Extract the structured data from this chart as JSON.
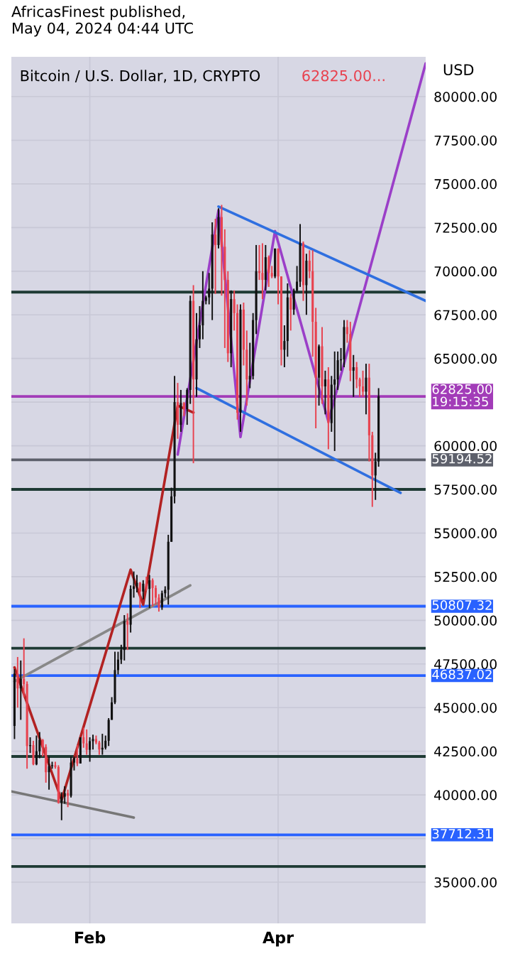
{
  "chart_data": {
    "type": "candlestick",
    "title": "Bitcoin / U.S. Dollar, 1D, CRYPTO",
    "subtitle": "62825.00...",
    "annotations": [
      "AfricasFinest published, May 04, 2024 04:44 UTC",
      "USD"
    ],
    "x": [
      "2024-01-08",
      "2024-01-09",
      "2024-01-10",
      "2024-01-11",
      "2024-01-12",
      "2024-01-13",
      "2024-01-14",
      "2024-01-15",
      "2024-01-16",
      "2024-01-17",
      "2024-01-18",
      "2024-01-19",
      "2024-01-20",
      "2024-01-21",
      "2024-01-22",
      "2024-01-23",
      "2024-01-24",
      "2024-01-25",
      "2024-01-26",
      "2024-01-27",
      "2024-01-28",
      "2024-01-29",
      "2024-01-30",
      "2024-01-31",
      "2024-02-01",
      "2024-02-02",
      "2024-02-03",
      "2024-02-04",
      "2024-02-05",
      "2024-02-06",
      "2024-02-07",
      "2024-02-08",
      "2024-02-09",
      "2024-02-10",
      "2024-02-11",
      "2024-02-12",
      "2024-02-13",
      "2024-02-14",
      "2024-02-15",
      "2024-02-16",
      "2024-02-17",
      "2024-02-18",
      "2024-02-19",
      "2024-02-20",
      "2024-02-21",
      "2024-02-22",
      "2024-02-23",
      "2024-02-24",
      "2024-02-25",
      "2024-02-26",
      "2024-02-27",
      "2024-02-28",
      "2024-02-29",
      "2024-03-01",
      "2024-03-02",
      "2024-03-03",
      "2024-03-04",
      "2024-03-05",
      "2024-03-06",
      "2024-03-07",
      "2024-03-08",
      "2024-03-09",
      "2024-03-10",
      "2024-03-11",
      "2024-03-12",
      "2024-03-13",
      "2024-03-14",
      "2024-03-15",
      "2024-03-16",
      "2024-03-17",
      "2024-03-18",
      "2024-03-19",
      "2024-03-20",
      "2024-03-21",
      "2024-03-22",
      "2024-03-23",
      "2024-03-24",
      "2024-03-25",
      "2024-03-26",
      "2024-03-27",
      "2024-03-28",
      "2024-03-29",
      "2024-03-30",
      "2024-03-31",
      "2024-04-01",
      "2024-04-02",
      "2024-04-03",
      "2024-04-04",
      "2024-04-05",
      "2024-04-06",
      "2024-04-07",
      "2024-04-08",
      "2024-04-09",
      "2024-04-10",
      "2024-04-11",
      "2024-04-12",
      "2024-04-13",
      "2024-04-14",
      "2024-04-15",
      "2024-04-16",
      "2024-04-17",
      "2024-04-18",
      "2024-04-19",
      "2024-04-20",
      "2024-04-21",
      "2024-04-22",
      "2024-04-23",
      "2024-04-24",
      "2024-04-25",
      "2024-04-26",
      "2024-04-27",
      "2024-04-28",
      "2024-04-29",
      "2024-04-30",
      "2024-05-01",
      "2024-05-02",
      "2024-05-03"
    ],
    "ohlc": [
      [
        43950,
        47200,
        43200,
        46950
      ],
      [
        46950,
        47900,
        45000,
        46100
      ],
      [
        46100,
        47700,
        44300,
        46650
      ],
      [
        46650,
        48970,
        45600,
        46350
      ],
      [
        46350,
        46500,
        41500,
        42800
      ],
      [
        42800,
        43300,
        42400,
        42850
      ],
      [
        42850,
        43100,
        41700,
        41750
      ],
      [
        41750,
        43400,
        41700,
        42500
      ],
      [
        42500,
        43600,
        42100,
        43150
      ],
      [
        43150,
        43200,
        42200,
        42750
      ],
      [
        42750,
        42900,
        40700,
        41300
      ],
      [
        41300,
        42200,
        40300,
        41650
      ],
      [
        41650,
        41900,
        41500,
        41700
      ],
      [
        41700,
        41900,
        41500,
        41600
      ],
      [
        41600,
        41700,
        39500,
        39550
      ],
      [
        39550,
        40150,
        38550,
        39900
      ],
      [
        39900,
        40500,
        39500,
        40100
      ],
      [
        40100,
        40300,
        39300,
        39950
      ],
      [
        39950,
        42200,
        39850,
        41850
      ],
      [
        41850,
        42200,
        41400,
        42100
      ],
      [
        42100,
        42850,
        41650,
        41800
      ],
      [
        41800,
        43300,
        41800,
        43300
      ],
      [
        43300,
        43850,
        42700,
        42950
      ],
      [
        42950,
        43750,
        42300,
        42580
      ],
      [
        42580,
        43300,
        41900,
        43080
      ],
      [
        43080,
        43450,
        42600,
        43200
      ],
      [
        43200,
        43400,
        42900,
        43000
      ],
      [
        43000,
        43100,
        42300,
        42600
      ],
      [
        42600,
        43500,
        42300,
        42700
      ],
      [
        42700,
        43400,
        42600,
        43100
      ],
      [
        43100,
        44400,
        42800,
        44300
      ],
      [
        44300,
        45600,
        44300,
        45300
      ],
      [
        45300,
        48200,
        45200,
        47150
      ],
      [
        47150,
        48200,
        46900,
        47750
      ],
      [
        47750,
        48600,
        47500,
        48300
      ],
      [
        48300,
        50300,
        47700,
        49950
      ],
      [
        49950,
        50400,
        48300,
        49750
      ],
      [
        49750,
        52000,
        49300,
        51800
      ],
      [
        51800,
        52800,
        51300,
        51950
      ],
      [
        51950,
        52600,
        51600,
        52150
      ],
      [
        52150,
        52200,
        50700,
        51650
      ],
      [
        51650,
        52300,
        51200,
        52100
      ],
      [
        52100,
        52500,
        51700,
        51800
      ],
      [
        51800,
        52600,
        50700,
        52300
      ],
      [
        52300,
        52400,
        50800,
        51850
      ],
      [
        51850,
        52000,
        50900,
        51300
      ],
      [
        51300,
        51500,
        50500,
        50750
      ],
      [
        50750,
        51700,
        50600,
        51550
      ],
      [
        51550,
        51950,
        51300,
        51750
      ],
      [
        51750,
        54900,
        50900,
        54500
      ],
      [
        54500,
        57600,
        54500,
        57100
      ],
      [
        57100,
        64000,
        56700,
        62500
      ],
      [
        62500,
        63600,
        60400,
        61200
      ],
      [
        61200,
        63200,
        60800,
        62450
      ],
      [
        62450,
        62500,
        61700,
        62100
      ],
      [
        62100,
        63300,
        61200,
        63200
      ],
      [
        63200,
        68600,
        62400,
        68300
      ],
      [
        68300,
        69200,
        59000,
        63800
      ],
      [
        63800,
        67600,
        62800,
        66100
      ],
      [
        66100,
        68000,
        65600,
        66900
      ],
      [
        66900,
        70000,
        66100,
        68300
      ],
      [
        68300,
        68600,
        68100,
        68500
      ],
      [
        68500,
        69900,
        68100,
        69000
      ],
      [
        69000,
        72800,
        67200,
        72100
      ],
      [
        72100,
        73000,
        68700,
        71500
      ],
      [
        71500,
        73600,
        71300,
        73100
      ],
      [
        73100,
        73800,
        68600,
        71400
      ],
      [
        71400,
        72400,
        65600,
        69500
      ],
      [
        69500,
        70000,
        64800,
        65300
      ],
      [
        65300,
        68900,
        64500,
        68400
      ],
      [
        68400,
        68900,
        66600,
        67600
      ],
      [
        67600,
        68100,
        61500,
        61900
      ],
      [
        61900,
        68100,
        60800,
        67800
      ],
      [
        67800,
        68200,
        64600,
        65500
      ],
      [
        65500,
        66600,
        62300,
        63800
      ],
      [
        63800,
        65900,
        63300,
        64000
      ],
      [
        64000,
        67600,
        63800,
        67200
      ],
      [
        67200,
        71500,
        66400,
        70000
      ],
      [
        70000,
        71500,
        69500,
        69900
      ],
      [
        69900,
        71600,
        68400,
        69500
      ],
      [
        69500,
        71500,
        68900,
        70800
      ],
      [
        70800,
        70900,
        69100,
        69900
      ],
      [
        69900,
        70300,
        69600,
        69700
      ],
      [
        69700,
        71300,
        69600,
        71300
      ],
      [
        71300,
        71300,
        68100,
        69700
      ],
      [
        69700,
        69700,
        64600,
        65500
      ],
      [
        65500,
        66900,
        64500,
        66000
      ],
      [
        66000,
        69300,
        65100,
        68500
      ],
      [
        68500,
        68700,
        66600,
        67800
      ],
      [
        67800,
        69000,
        67500,
        68900
      ],
      [
        68900,
        70300,
        68800,
        69400
      ],
      [
        69400,
        72700,
        69100,
        71600
      ],
      [
        71600,
        71700,
        68300,
        69200
      ],
      [
        69200,
        71000,
        67500,
        70600
      ],
      [
        70600,
        71200,
        69600,
        70000
      ],
      [
        70000,
        71200,
        65100,
        67100
      ],
      [
        67100,
        67900,
        61000,
        63900
      ],
      [
        63900,
        65800,
        62300,
        65700
      ],
      [
        65700,
        66800,
        62400,
        63400
      ],
      [
        63400,
        64300,
        61800,
        63800
      ],
      [
        63800,
        64500,
        59800,
        61300
      ],
      [
        61300,
        64000,
        60800,
        63500
      ],
      [
        63500,
        65400,
        59700,
        63800
      ],
      [
        63800,
        65400,
        63200,
        64900
      ],
      [
        64900,
        65600,
        64300,
        64950
      ],
      [
        64950,
        67200,
        64500,
        66800
      ],
      [
        66800,
        67200,
        65900,
        66400
      ],
      [
        66400,
        67100,
        63700,
        64300
      ],
      [
        64300,
        65200,
        62800,
        64500
      ],
      [
        64500,
        64800,
        63300,
        63800
      ],
      [
        63800,
        63900,
        62800,
        63400
      ],
      [
        63400,
        64300,
        62800,
        63100
      ],
      [
        63100,
        64700,
        61800,
        63900
      ],
      [
        63900,
        64700,
        59100,
        60600
      ],
      [
        60600,
        60800,
        56500,
        58300
      ],
      [
        58300,
        59600,
        56900,
        59100
      ],
      [
        59100,
        63300,
        58800,
        62825
      ]
    ],
    "colors": [
      "#111111",
      "#e8424f",
      "#111111",
      "#e8424f",
      "#e8424f",
      "#111111",
      "#e8424f",
      "#111111",
      "#111111",
      "#e8424f",
      "#e8424f",
      "#111111",
      "#111111",
      "#e8424f",
      "#e8424f",
      "#111111",
      "#111111",
      "#e8424f",
      "#111111",
      "#111111",
      "#e8424f",
      "#111111",
      "#e8424f",
      "#e8424f",
      "#111111",
      "#111111",
      "#e8424f",
      "#e8424f",
      "#111111",
      "#111111",
      "#111111",
      "#111111",
      "#111111",
      "#111111",
      "#111111",
      "#111111",
      "#e8424f",
      "#111111",
      "#111111",
      "#111111",
      "#e8424f",
      "#111111",
      "#e8424f",
      "#111111",
      "#e8424f",
      "#e8424f",
      "#e8424f",
      "#111111",
      "#111111",
      "#111111",
      "#111111",
      "#111111",
      "#e8424f",
      "#111111",
      "#e8424f",
      "#111111",
      "#111111",
      "#e8424f",
      "#111111",
      "#111111",
      "#111111",
      "#111111",
      "#111111",
      "#111111",
      "#e8424f",
      "#111111",
      "#e8424f",
      "#e8424f",
      "#e8424f",
      "#111111",
      "#e8424f",
      "#e8424f",
      "#111111",
      "#e8424f",
      "#e8424f",
      "#111111",
      "#111111",
      "#111111",
      "#e8424f",
      "#e8424f",
      "#111111",
      "#e8424f",
      "#e8424f",
      "#111111",
      "#e8424f",
      "#e8424f",
      "#111111",
      "#111111",
      "#e8424f",
      "#111111",
      "#111111",
      "#111111",
      "#e8424f",
      "#111111",
      "#e8424f",
      "#e8424f",
      "#e8424f",
      "#111111",
      "#e8424f",
      "#111111",
      "#e8424f",
      "#111111",
      "#111111",
      "#111111",
      "#111111",
      "#111111",
      "#e8424f",
      "#e8424f",
      "#111111",
      "#e8424f",
      "#e8424f",
      "#e8424f",
      "#111111",
      "#e8424f",
      "#e8424f",
      "#111111",
      "#111111"
    ],
    "series": [
      {
        "type": "line",
        "color": "#888888",
        "x": [
          "2024-01-08",
          "2024-03-04"
        ],
        "values": [
          46500,
          52000
        ]
      },
      {
        "type": "line",
        "color": "#777777",
        "x": [
          "2024-01-07",
          "2024-02-15"
        ],
        "values": [
          40200,
          38700
        ]
      },
      {
        "type": "line",
        "color": "#b22222",
        "x": [
          "2024-01-08",
          "2024-01-23",
          "2024-02-14",
          "2024-02-18",
          "2024-02-29",
          "2024-03-05"
        ],
        "values": [
          47300,
          39700,
          52900,
          50900,
          62300,
          61900
        ]
      },
      {
        "type": "line",
        "color": "#9b3fc8",
        "x": [
          "2024-02-29",
          "2024-03-13",
          "2024-03-20",
          "2024-03-31",
          "2024-04-17",
          "2024-05-18"
        ],
        "values": [
          59500,
          73500,
          60500,
          72300,
          61400,
          81900
        ]
      },
      {
        "type": "line",
        "color": "#2f6fe0",
        "x": [
          "2024-03-13",
          "2024-05-18"
        ],
        "values": [
          73700,
          68300
        ]
      },
      {
        "type": "line",
        "color": "#2f6fe0",
        "x": [
          "2024-03-06",
          "2024-05-10"
        ],
        "values": [
          63300,
          57300
        ]
      }
    ],
    "ref_lines": [
      {
        "axis": "y",
        "value": 68800,
        "color": "#1e3a34"
      },
      {
        "axis": "y",
        "value": 57500,
        "color": "#1e3a34"
      },
      {
        "axis": "y",
        "value": 48400,
        "color": "#1e3a34"
      },
      {
        "axis": "y",
        "value": 42200,
        "color": "#1e3a34"
      },
      {
        "axis": "y",
        "value": 35900,
        "color": "#1e3a34"
      },
      {
        "axis": "y",
        "value": 50807.32,
        "label": "50807.32",
        "color": "#2962ff"
      },
      {
        "axis": "y",
        "value": 46837.02,
        "label": "46837.02",
        "color": "#2962ff"
      },
      {
        "axis": "y",
        "value": 37712.31,
        "label": "37712.31",
        "color": "#2962ff"
      },
      {
        "axis": "y",
        "value": 59194.52,
        "label": "59194.52",
        "color": "#5d606b"
      },
      {
        "axis": "y",
        "value": 62825,
        "label": "62825.00\n19:15:35",
        "color": "#a23cb8"
      }
    ],
    "xlim": [
      "2024-01-07",
      "2024-05-18"
    ],
    "xticks": [
      {
        "value": "2024-02-01",
        "label": "Feb"
      },
      {
        "value": "2024-04-01",
        "label": "Apr"
      }
    ],
    "ylim": [
      32640,
      82280
    ],
    "yticks": [
      {
        "value": 35000,
        "label": "35000.00"
      },
      {
        "value": 37500,
        "label": null
      },
      {
        "value": 40000,
        "label": "40000.00"
      },
      {
        "value": 42500,
        "label": "42500.00"
      },
      {
        "value": 45000,
        "label": "45000.00"
      },
      {
        "value": 47500,
        "label": "47500.00"
      },
      {
        "value": 50000,
        "label": "50000.00"
      },
      {
        "value": 52500,
        "label": "52500.00"
      },
      {
        "value": 55000,
        "label": "55000.00"
      },
      {
        "value": 57500,
        "label": "57500.00"
      },
      {
        "value": 60000,
        "label": "60000.00"
      },
      {
        "value": 62500,
        "label": null
      },
      {
        "value": 65000,
        "label": "65000.00"
      },
      {
        "value": 67500,
        "label": "67500.00"
      },
      {
        "value": 70000,
        "label": "70000.00"
      },
      {
        "value": 72500,
        "label": "72500.00"
      },
      {
        "value": 75000,
        "label": "75000.00"
      },
      {
        "value": 77500,
        "label": "77500.00"
      },
      {
        "value": 80000,
        "label": "80000.00"
      }
    ],
    "grid": true
  }
}
